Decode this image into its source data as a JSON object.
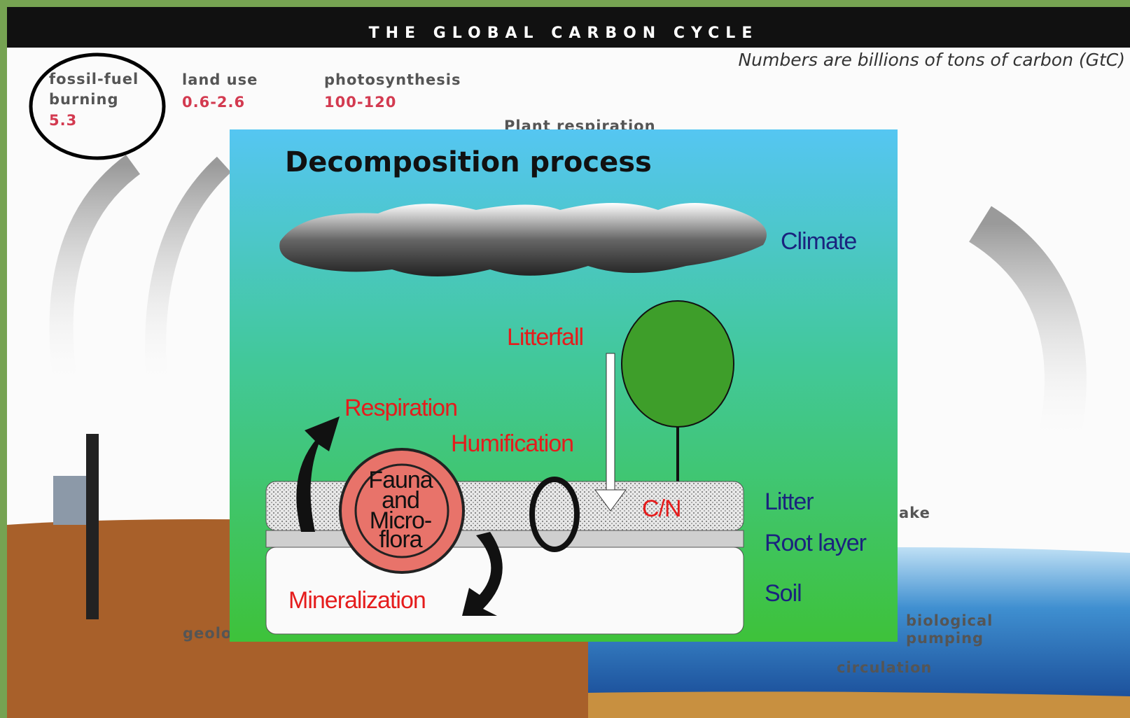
{
  "background": {
    "title": "THE GLOBAL CARBON CYCLE",
    "note": "Numbers are billions of tons of carbon (GtC)",
    "fossil_fuel": {
      "label": [
        "fossil-fuel",
        "burning"
      ],
      "value": "5.3"
    },
    "land_use": {
      "label": [
        "land use"
      ],
      "value": "0.6-2.6"
    },
    "photosynthesis": {
      "label": [
        "photosynthesis"
      ],
      "value": "100-120"
    },
    "plant_respiration": "Plant respiration",
    "uptake_fragment": "ake",
    "geological_fragment": "geolo",
    "biological_pumping": [
      "biological",
      "pumping"
    ],
    "circulation": "circulation"
  },
  "inset": {
    "title": "Decomposition process",
    "climate": "Climate",
    "litterfall": "Litterfall",
    "respiration": "Respiration",
    "humification": "Humification",
    "organisms": [
      "Fauna",
      "and",
      "Micro-",
      "flora"
    ],
    "ratio": "C/N",
    "layers": [
      "Litter",
      "Root layer",
      "Soil"
    ],
    "mineralization": "Mineralization"
  }
}
